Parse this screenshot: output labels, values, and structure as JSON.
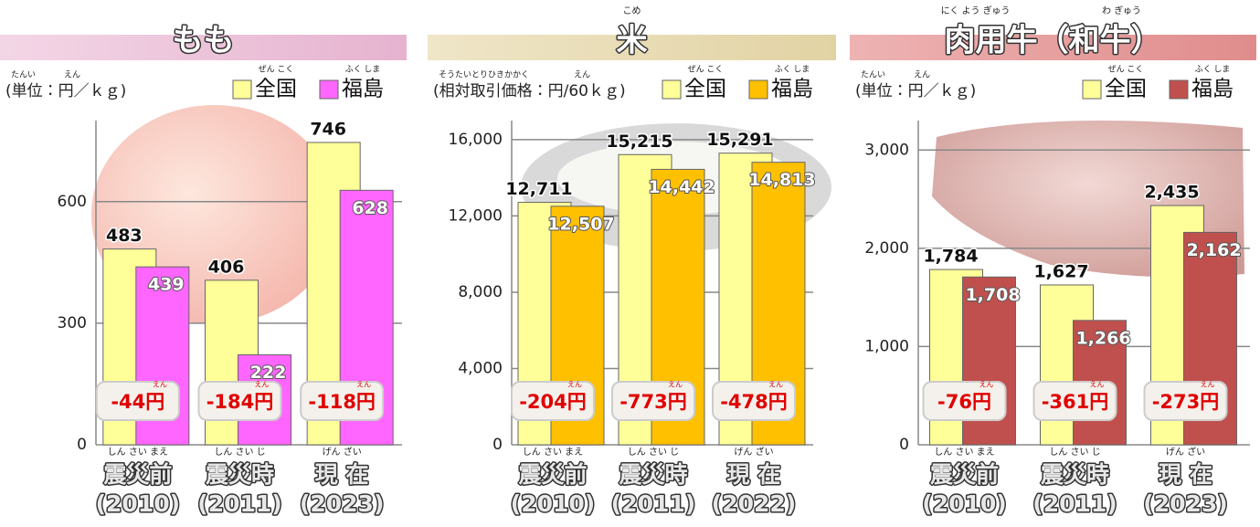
{
  "chart_data": [
    {
      "type": "bar",
      "title": "もも",
      "unit": "(単位：円／ｋｇ)",
      "unit_ruby": [
        "たんい",
        "えん"
      ],
      "categories": [
        "震災前",
        "震災時",
        "現 在"
      ],
      "category_years": [
        "(2010)",
        "(2011)",
        "(2023)"
      ],
      "category_ruby": [
        "しん さい まえ",
        "しん さい じ",
        "げん ざい"
      ],
      "series": [
        {
          "name": "全国",
          "ruby": "ぜん こく",
          "color": "#ffff99",
          "values": [
            483,
            406,
            746
          ]
        },
        {
          "name": "福島",
          "ruby": "ふく しま",
          "color": "#ff66ff",
          "values": [
            439,
            222,
            628
          ]
        }
      ],
      "annotations": [
        "-44円",
        "-184円",
        "-118円"
      ],
      "annotation_ruby": "えん",
      "ylim": [
        0,
        800
      ],
      "yticks": [
        0,
        300,
        600
      ],
      "grid": true
    },
    {
      "type": "bar",
      "title": "米",
      "title_ruby": [
        "こめ"
      ],
      "unit": "(相対取引価格：円/60ｋｇ)",
      "unit_ruby": [
        "そうたいとりひきかかく",
        "えん"
      ],
      "categories": [
        "震災前",
        "震災時",
        "現 在"
      ],
      "category_years": [
        "(2010)",
        "(2011)",
        "(2022)"
      ],
      "category_ruby": [
        "しん さい まえ",
        "しん さい じ",
        "げん ざい"
      ],
      "series": [
        {
          "name": "全国",
          "ruby": "ぜん こく",
          "color": "#ffff99",
          "values": [
            12711,
            15215,
            15291
          ],
          "value_labels": [
            "12,711",
            "15,215",
            "15,291"
          ]
        },
        {
          "name": "福島",
          "ruby": "ふく しま",
          "color": "#ffc000",
          "values": [
            12507,
            14442,
            14813
          ],
          "value_labels": [
            "12,507",
            "14,442",
            "14,813"
          ]
        }
      ],
      "annotations": [
        "-204円",
        "-773円",
        "-478円"
      ],
      "annotation_ruby": "えん",
      "ylim": [
        0,
        17000
      ],
      "yticks": [
        0,
        {
          "value": 4000,
          "label": "4,000"
        },
        {
          "value": 8000,
          "label": "8,000"
        },
        {
          "value": 12000,
          "label": "12,000"
        },
        {
          "value": 16000,
          "label": "16,000"
        }
      ],
      "grid": true
    },
    {
      "type": "bar",
      "title": "肉用牛（和牛）",
      "title_ruby": [
        "にく よう ぎゅう",
        "わ ぎゅう"
      ],
      "unit": "(単位：円／ｋｇ)",
      "unit_ruby": [
        "たんい",
        "えん"
      ],
      "categories": [
        "震災前",
        "震災時",
        "現 在"
      ],
      "category_years": [
        "(2010)",
        "(2011)",
        "(2023)"
      ],
      "category_ruby": [
        "しん さい まえ",
        "しん さい じ",
        "げん ざい"
      ],
      "series": [
        {
          "name": "全国",
          "ruby": "ぜん こく",
          "color": "#ffff99",
          "values": [
            1784,
            1627,
            2435
          ],
          "value_labels": [
            "1,784",
            "1,627",
            "2,435"
          ]
        },
        {
          "name": "福島",
          "ruby": "ふく しま",
          "color": "#c0504d",
          "values": [
            1708,
            1266,
            2162
          ],
          "value_labels": [
            "1,708",
            "1,266",
            "2,162"
          ]
        }
      ],
      "annotations": [
        "-76円",
        "-361円",
        "-273円"
      ],
      "annotation_ruby": "えん",
      "ylim": [
        0,
        3300
      ],
      "yticks": [
        0,
        {
          "value": 1000,
          "label": "1,000"
        },
        {
          "value": 2000,
          "label": "2,000"
        },
        {
          "value": 3000,
          "label": "3,000"
        }
      ],
      "grid": true
    }
  ]
}
